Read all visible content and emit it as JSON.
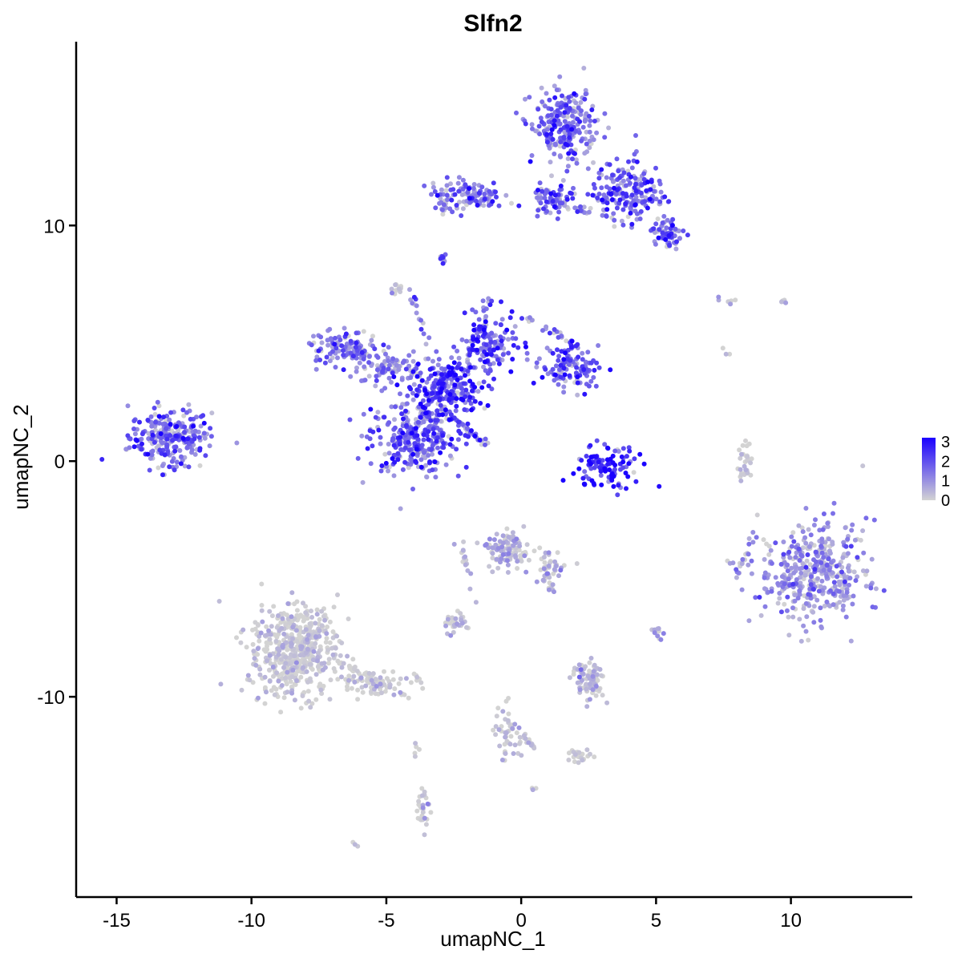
{
  "chart_data": {
    "type": "scatter",
    "title": "Slfn2",
    "xlabel": "umapNC_1",
    "ylabel": "umapNC_2",
    "xlim": [
      -16.5,
      14.5
    ],
    "ylim": [
      -18.5,
      17.8
    ],
    "x_ticks": [
      -15,
      -10,
      -5,
      0,
      5,
      10
    ],
    "x_tick_labels": [
      "-15",
      "-10",
      "-5",
      "0",
      "5",
      "10"
    ],
    "y_ticks": [
      -10,
      0,
      10
    ],
    "y_tick_labels": [
      "-10",
      "0",
      "10"
    ],
    "grid": false,
    "legend_position": "right",
    "color_scale": {
      "low": "#d3d3d3",
      "high": "#1a00ff",
      "range": [
        0,
        3.2
      ],
      "ticks": [
        0,
        1,
        2,
        3
      ],
      "tick_labels": [
        "0",
        "1",
        "2",
        "3"
      ]
    },
    "clusters": [
      {
        "cx": -13.0,
        "cy": 1.0,
        "sx": 1.0,
        "sy": 0.8,
        "n": 260,
        "expr": 1.4
      },
      {
        "cx": -4.0,
        "cy": 1.0,
        "sx": 1.1,
        "sy": 1.0,
        "n": 300,
        "expr": 1.5
      },
      {
        "cx": -2.8,
        "cy": 3.0,
        "sx": 0.8,
        "sy": 0.8,
        "n": 240,
        "expr": 1.9
      },
      {
        "cx": -1.2,
        "cy": 4.8,
        "sx": 0.7,
        "sy": 0.9,
        "n": 140,
        "expr": 1.8
      },
      {
        "cx": 1.8,
        "cy": 4.0,
        "sx": 0.7,
        "sy": 0.6,
        "n": 120,
        "expr": 1.5
      },
      {
        "cx": -6.5,
        "cy": 4.8,
        "sx": 0.9,
        "sy": 0.5,
        "n": 110,
        "expr": 1.3
      },
      {
        "cx": -4.8,
        "cy": 4.0,
        "sx": 0.8,
        "sy": 0.5,
        "n": 90,
        "expr": 1.2
      },
      {
        "cx": 1.6,
        "cy": 14.2,
        "sx": 0.8,
        "sy": 1.0,
        "n": 230,
        "expr": 1.4
      },
      {
        "cx": 4.0,
        "cy": 11.4,
        "sx": 0.9,
        "sy": 0.9,
        "n": 200,
        "expr": 1.6
      },
      {
        "cx": -2.0,
        "cy": 11.3,
        "sx": 0.9,
        "sy": 0.4,
        "n": 110,
        "expr": 1.3
      },
      {
        "cx": 1.2,
        "cy": 11.1,
        "sx": 0.6,
        "sy": 0.4,
        "n": 70,
        "expr": 1.5
      },
      {
        "cx": 5.4,
        "cy": 9.6,
        "sx": 0.4,
        "sy": 0.4,
        "n": 60,
        "expr": 1.5
      },
      {
        "cx": 3.2,
        "cy": -0.3,
        "sx": 0.8,
        "sy": 0.6,
        "n": 110,
        "expr": 2.5
      },
      {
        "cx": 10.8,
        "cy": -4.7,
        "sx": 1.3,
        "sy": 1.4,
        "n": 420,
        "expr": 0.8
      },
      {
        "cx": -8.4,
        "cy": -8.0,
        "sx": 1.1,
        "sy": 1.3,
        "n": 520,
        "expr": 0.03
      },
      {
        "cx": -5.5,
        "cy": -9.4,
        "sx": 0.9,
        "sy": 0.4,
        "n": 60,
        "expr": 0.05
      },
      {
        "cx": -0.5,
        "cy": -3.8,
        "sx": 0.5,
        "sy": 0.5,
        "n": 110,
        "expr": 0.3
      },
      {
        "cx": 1.0,
        "cy": -4.5,
        "sx": 0.4,
        "sy": 0.6,
        "n": 40,
        "expr": 0.25
      },
      {
        "cx": 2.5,
        "cy": -9.3,
        "sx": 0.4,
        "sy": 0.5,
        "n": 90,
        "expr": 0.2
      },
      {
        "cx": -2.5,
        "cy": -6.9,
        "sx": 0.3,
        "sy": 0.3,
        "n": 30,
        "expr": 0.3
      },
      {
        "cx": -0.5,
        "cy": -11.5,
        "sx": 0.4,
        "sy": 0.8,
        "n": 40,
        "expr": 0.05
      },
      {
        "cx": 2.2,
        "cy": -12.5,
        "sx": 0.3,
        "sy": 0.2,
        "n": 25,
        "expr": 0.02
      },
      {
        "cx": -3.6,
        "cy": -14.7,
        "sx": 0.2,
        "sy": 0.5,
        "n": 30,
        "expr": 0.2
      },
      {
        "cx": 8.3,
        "cy": -0.1,
        "sx": 0.2,
        "sy": 0.6,
        "n": 30,
        "expr": 0.05
      },
      {
        "cx": 8.1,
        "cy": -4.5,
        "sx": 0.2,
        "sy": 0.3,
        "n": 15,
        "expr": 0.5
      },
      {
        "cx": -4.6,
        "cy": 7.3,
        "sx": 0.2,
        "sy": 0.2,
        "n": 12,
        "expr": 0.2
      },
      {
        "cx": 5.0,
        "cy": -7.3,
        "sx": 0.15,
        "sy": 0.2,
        "n": 10,
        "expr": 0.6
      },
      {
        "cx": -2.9,
        "cy": 8.6,
        "sx": 0.12,
        "sy": 0.15,
        "n": 8,
        "expr": 1.3
      },
      {
        "cx": -2.9,
        "cy": 10.8,
        "sx": 0.1,
        "sy": 0.3,
        "n": 8,
        "expr": 0.4
      },
      {
        "cx": 9.8,
        "cy": 6.7,
        "sx": 0.3,
        "sy": 0.15,
        "n": 5,
        "expr": 0.3
      }
    ],
    "streaks": [
      {
        "x0": -2.6,
        "y0": 1.9,
        "x1": -1.2,
        "y1": 0.6,
        "n": 30,
        "expr": 1.5
      },
      {
        "x0": -4.1,
        "y0": 7.2,
        "x1": -3.2,
        "y1": 3.8,
        "n": 18,
        "expr": 1.2
      },
      {
        "x0": -1.0,
        "y0": 7.5,
        "x1": -2.2,
        "y1": 3.2,
        "n": 25,
        "expr": 1.6
      },
      {
        "x0": 0.0,
        "y0": 6.2,
        "x1": 2.0,
        "y1": 5.0,
        "n": 20,
        "expr": 1.4
      },
      {
        "x0": -6.8,
        "y0": -8.5,
        "x1": -4.0,
        "y1": -10.2,
        "n": 40,
        "expr": 0.03
      },
      {
        "x0": -2.3,
        "y0": -3.3,
        "x1": -1.5,
        "y1": -6.5,
        "n": 15,
        "expr": 0.3
      },
      {
        "x0": -0.6,
        "y0": -10.8,
        "x1": 0.5,
        "y1": -12.2,
        "n": 20,
        "expr": 0.05
      },
      {
        "x0": 1.2,
        "y0": 11.1,
        "x1": 3.1,
        "y1": 10.3,
        "n": 20,
        "expr": 1.0
      },
      {
        "x0": 0.8,
        "y0": -4.8,
        "x1": 1.2,
        "y1": -5.5,
        "n": 10,
        "expr": 0.4
      },
      {
        "x0": 7.0,
        "y0": 6.9,
        "x1": 8.5,
        "y1": 6.7,
        "n": 6,
        "expr": 0.1
      },
      {
        "x0": 7.6,
        "y0": 4.8,
        "x1": 7.7,
        "y1": 4.6,
        "n": 3,
        "expr": 0.1
      },
      {
        "x0": -6.2,
        "y0": -16.3,
        "x1": -6.1,
        "y1": -16.2,
        "n": 3,
        "expr": 0.05
      },
      {
        "x0": 0.5,
        "y0": -13.9,
        "x1": 0.6,
        "y1": -14.0,
        "n": 3,
        "expr": 0.05
      },
      {
        "x0": -3.9,
        "y0": -11.8,
        "x1": -3.9,
        "y1": -12.6,
        "n": 5,
        "expr": 0.05
      },
      {
        "x0": -4.0,
        "y0": -9.0,
        "x1": -3.6,
        "y1": -9.5,
        "n": 6,
        "expr": 0.05
      }
    ]
  }
}
